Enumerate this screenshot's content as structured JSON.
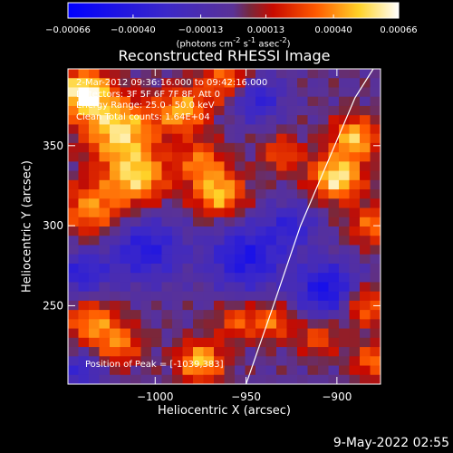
{
  "colorbar": {
    "ticks": [
      "-0.00066",
      "-0.00040",
      "-0.00013",
      "0.00013",
      "0.00040",
      "0.00066"
    ],
    "tick_values": [
      -0.00066,
      -0.0004,
      -0.00013,
      0.00013,
      0.0004,
      0.00066
    ],
    "units_html": "(photons cm<sup>-2</sup> s<sup>-1</sup> asec<sup>-2</sup>)",
    "range": [
      -0.00066,
      0.00066
    ],
    "colors": [
      "#0000ff",
      "#4a3fd0",
      "#ff4500",
      "#ffd700",
      "#ffffff"
    ]
  },
  "info": {
    "line1": "2-Mar-2012 09:36:16.000 to 09:42:16.000",
    "line2": "Detectors: 3F 5F 6F 7F 8F, Att 0",
    "line3": "Energy Range: 25.0 - 50.0 keV",
    "line4": "Clean     Total counts: 1.64E+04"
  },
  "peak_text": "Position of Peak = [-1039,383]",
  "footer": "9-May-2022 02:55",
  "chart_data": {
    "type": "heatmap",
    "title": "Reconstructed RHESSI Image",
    "xlabel": "Heliocentric X (arcsec)",
    "ylabel": "Heliocentric Y (arcsec)",
    "xlim": [
      -1048,
      -876
    ],
    "ylim": [
      201,
      398
    ],
    "xticks": [
      -1000,
      -950,
      -900
    ],
    "xtick_labels": [
      "−1000",
      "−950",
      "−900"
    ],
    "yticks": [
      250,
      300,
      350
    ],
    "ytick_labels": [
      "250",
      "300",
      "350"
    ],
    "limb_line": {
      "x": [
        -950,
        -935,
        -920,
        -905,
        -890,
        -880
      ],
      "y": [
        201,
        250,
        300,
        340,
        380,
        398
      ]
    },
    "value_range": [
      -0.00066,
      0.00066
    ],
    "grid_cols": 30,
    "grid_rows": 34,
    "blobs": [
      {
        "x": -1039,
        "y": 383,
        "a": 0.00066,
        "s": 10
      },
      {
        "x": -1020,
        "y": 360,
        "a": 0.00055,
        "s": 14
      },
      {
        "x": -1010,
        "y": 330,
        "a": 0.0005,
        "s": 12
      },
      {
        "x": -1035,
        "y": 310,
        "a": 0.0004,
        "s": 12
      },
      {
        "x": -985,
        "y": 372,
        "a": 0.00045,
        "s": 10
      },
      {
        "x": -960,
        "y": 390,
        "a": 0.0004,
        "s": 10
      },
      {
        "x": -975,
        "y": 340,
        "a": 0.00035,
        "s": 9
      },
      {
        "x": -965,
        "y": 320,
        "a": 0.0005,
        "s": 10
      },
      {
        "x": -930,
        "y": 345,
        "a": 0.0003,
        "s": 8
      },
      {
        "x": -900,
        "y": 330,
        "a": 0.0006,
        "s": 10
      },
      {
        "x": -890,
        "y": 355,
        "a": 0.0005,
        "s": 9
      },
      {
        "x": -880,
        "y": 300,
        "a": 0.00035,
        "s": 9
      },
      {
        "x": -1035,
        "y": 240,
        "a": 0.0004,
        "s": 10
      },
      {
        "x": -1020,
        "y": 225,
        "a": 0.00035,
        "s": 9
      },
      {
        "x": -975,
        "y": 215,
        "a": 0.0005,
        "s": 9
      },
      {
        "x": -955,
        "y": 240,
        "a": 0.0003,
        "s": 8
      },
      {
        "x": -935,
        "y": 240,
        "a": 0.00035,
        "s": 8
      },
      {
        "x": -910,
        "y": 230,
        "a": 0.0003,
        "s": 8
      },
      {
        "x": -885,
        "y": 250,
        "a": 0.0004,
        "s": 9
      },
      {
        "x": -880,
        "y": 215,
        "a": 0.00035,
        "s": 8
      },
      {
        "x": -1005,
        "y": 285,
        "a": -0.0004,
        "s": 14
      },
      {
        "x": -950,
        "y": 280,
        "a": -0.00045,
        "s": 14
      },
      {
        "x": -925,
        "y": 300,
        "a": -0.0003,
        "s": 10
      },
      {
        "x": -905,
        "y": 260,
        "a": -0.0005,
        "s": 12
      },
      {
        "x": -1040,
        "y": 270,
        "a": -0.00035,
        "s": 10
      },
      {
        "x": -945,
        "y": 380,
        "a": -0.0004,
        "s": 10
      },
      {
        "x": -1040,
        "y": 210,
        "a": -0.0003,
        "s": 8
      }
    ]
  }
}
